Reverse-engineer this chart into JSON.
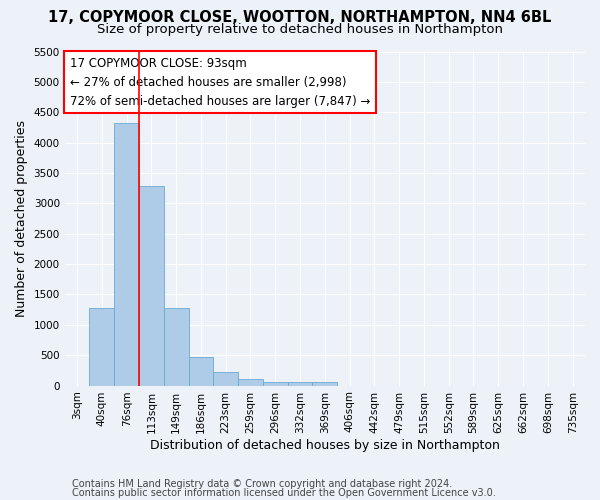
{
  "title1": "17, COPYMOOR CLOSE, WOOTTON, NORTHAMPTON, NN4 6BL",
  "title2": "Size of property relative to detached houses in Northampton",
  "xlabel": "Distribution of detached houses by size in Northampton",
  "ylabel": "Number of detached properties",
  "footer1": "Contains HM Land Registry data © Crown copyright and database right 2024.",
  "footer2": "Contains public sector information licensed under the Open Government Licence v3.0.",
  "categories": [
    "3sqm",
    "40sqm",
    "76sqm",
    "113sqm",
    "149sqm",
    "186sqm",
    "223sqm",
    "259sqm",
    "296sqm",
    "332sqm",
    "369sqm",
    "406sqm",
    "442sqm",
    "479sqm",
    "515sqm",
    "552sqm",
    "589sqm",
    "625sqm",
    "662sqm",
    "698sqm",
    "735sqm"
  ],
  "values": [
    0,
    1270,
    4330,
    3290,
    1280,
    470,
    230,
    100,
    65,
    55,
    60,
    0,
    0,
    0,
    0,
    0,
    0,
    0,
    0,
    0,
    0
  ],
  "bar_color": "#aecce8",
  "bar_edge_color": "#6aaad4",
  "red_line_x": 2.5,
  "annotation_text": "17 COPYMOOR CLOSE: 93sqm\n← 27% of detached houses are smaller (2,998)\n72% of semi-detached houses are larger (7,847) →",
  "annotation_box_color": "white",
  "annotation_box_edge_color": "red",
  "ylim": [
    0,
    5500
  ],
  "yticks": [
    0,
    500,
    1000,
    1500,
    2000,
    2500,
    3000,
    3500,
    4000,
    4500,
    5000,
    5500
  ],
  "bg_color": "#edf2f9",
  "plot_bg_color": "#edf2f9",
  "grid_color": "white",
  "title_fontsize": 10.5,
  "subtitle_fontsize": 9.5,
  "axis_label_fontsize": 9,
  "tick_fontsize": 7.5,
  "footer_fontsize": 7
}
